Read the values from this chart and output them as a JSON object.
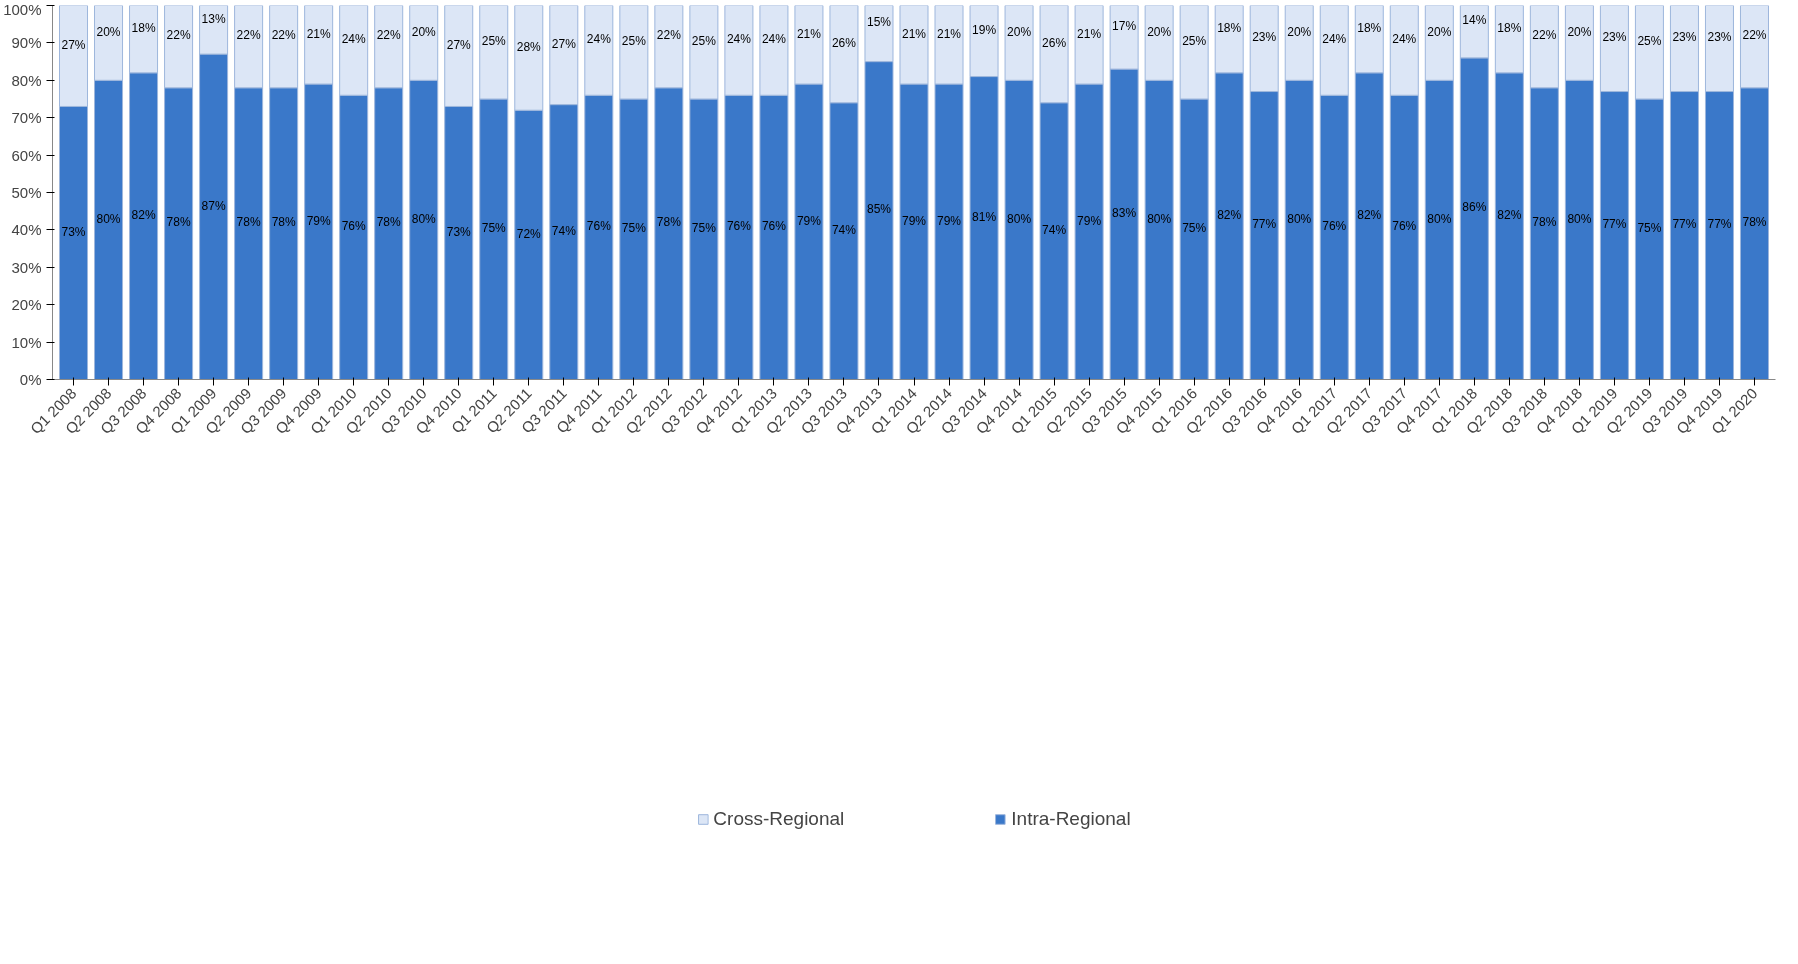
{
  "chart_data": {
    "type": "bar",
    "stacked": true,
    "legend": "bottom",
    "grid": false,
    "categories": [
      "Q1 2008",
      "Q2 2008",
      "Q3 2008",
      "Q4 2008",
      "Q1 2009",
      "Q2 2009",
      "Q3 2009",
      "Q4 2009",
      "Q1 2010",
      "Q2 2010",
      "Q3 2010",
      "Q4 2010",
      "Q1 2011",
      "Q2 2011",
      "Q3 2011",
      "Q4 2011",
      "Q1 2012",
      "Q2 2012",
      "Q3 2012",
      "Q4 2012",
      "Q1 2013",
      "Q2 2013",
      "Q3 2013",
      "Q4 2013",
      "Q1 2014",
      "Q2 2014",
      "Q3 2014",
      "Q4 2014",
      "Q1 2015",
      "Q2 2015",
      "Q3 2015",
      "Q4 2015",
      "Q1 2016",
      "Q2 2016",
      "Q3 2016",
      "Q4 2016",
      "Q1 2017",
      "Q2 2017",
      "Q3 2017",
      "Q4 2017",
      "Q1 2018",
      "Q2 2018",
      "Q3 2018",
      "Q4 2018",
      "Q1 2019",
      "Q2 2019",
      "Q3 2019",
      "Q4 2019",
      "Q1 2020"
    ],
    "ylim": [
      0,
      100
    ],
    "yticks": [
      {
        "value": 0,
        "label": "0%"
      },
      {
        "value": 10,
        "label": "10%"
      },
      {
        "value": 20,
        "label": "20%"
      },
      {
        "value": 30,
        "label": "30%"
      },
      {
        "value": 40,
        "label": "40%"
      },
      {
        "value": 50,
        "label": "50%"
      },
      {
        "value": 60,
        "label": "60%"
      },
      {
        "value": 70,
        "label": "70%"
      },
      {
        "value": 80,
        "label": "80%"
      },
      {
        "value": 90,
        "label": "90%"
      },
      {
        "value": 100,
        "label": "100%"
      }
    ],
    "series": [
      {
        "name": "Intra-Regional",
        "color": "#3a78c9",
        "values": [
          73,
          80,
          82,
          78,
          87,
          78,
          78,
          79,
          76,
          78,
          80,
          73,
          75,
          72,
          73.5,
          76,
          75,
          78,
          75,
          76,
          76,
          79,
          74,
          85,
          79,
          79,
          81,
          80,
          74,
          79,
          83,
          80,
          75,
          82,
          77,
          80,
          76,
          82,
          76,
          80,
          86,
          82,
          78,
          80,
          77,
          75,
          77,
          77,
          78
        ],
        "value_labels": [
          "73%",
          "80%",
          "82%",
          "78%",
          "87%",
          "78%",
          "78%",
          "79%",
          "76%",
          "78%",
          "80%",
          "73%",
          "75%",
          "72%",
          "74%",
          "76%",
          "75%",
          "78%",
          "75%",
          "76%",
          "76%",
          "79%",
          "74%",
          "85%",
          "79%",
          "79%",
          "81%",
          "80%",
          "74%",
          "79%",
          "83%",
          "80%",
          "75%",
          "82%",
          "77%",
          "80%",
          "76%",
          "82%",
          "76%",
          "80%",
          "86%",
          "82%",
          "78%",
          "80%",
          "77%",
          "75%",
          "77%",
          "77%",
          "78%"
        ]
      },
      {
        "name": "Cross-Regional",
        "color": "#dce6f6",
        "values": [
          27,
          20,
          18,
          22,
          13,
          22,
          22,
          21,
          24,
          22,
          20,
          27,
          25,
          28,
          26.5,
          24,
          25,
          22,
          25,
          24,
          24,
          21,
          26,
          15,
          21,
          21,
          19,
          20,
          26,
          21,
          17,
          20,
          25,
          18,
          23,
          20,
          24,
          18,
          24,
          20,
          14,
          18,
          22,
          20,
          23,
          25,
          23,
          23,
          22
        ],
        "value_labels": [
          "27%",
          "20%",
          "18%",
          "22%",
          "13%",
          "22%",
          "22%",
          "21%",
          "24%",
          "22%",
          "20%",
          "27%",
          "25%",
          "28%",
          "27%",
          "24%",
          "25%",
          "22%",
          "25%",
          "24%",
          "24%",
          "21%",
          "26%",
          "15%",
          "21%",
          "21%",
          "19%",
          "20%",
          "26%",
          "21%",
          "17%",
          "20%",
          "25%",
          "18%",
          "23%",
          "20%",
          "24%",
          "18%",
          "24%",
          "20%",
          "14%",
          "18%",
          "22%",
          "20%",
          "23%",
          "25%",
          "23%",
          "23%",
          "22%"
        ]
      }
    ]
  }
}
